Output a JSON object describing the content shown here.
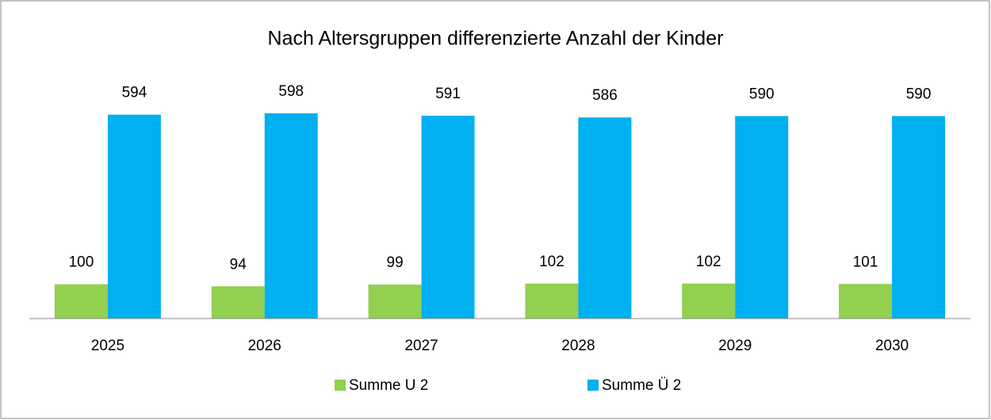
{
  "chart_data": {
    "type": "bar",
    "title": "Nach Altersgruppen differenzierte Anzahl der Kinder",
    "categories": [
      "2025",
      "2026",
      "2027",
      "2028",
      "2029",
      "2030"
    ],
    "series": [
      {
        "name": "Summe U 2",
        "color": "#92d050",
        "values": [
          100,
          94,
          99,
          102,
          102,
          101
        ]
      },
      {
        "name": "Summe Ü 2",
        "color": "#00b0f0",
        "values": [
          594,
          598,
          591,
          586,
          590,
          590
        ]
      }
    ],
    "legend": "bottom"
  }
}
